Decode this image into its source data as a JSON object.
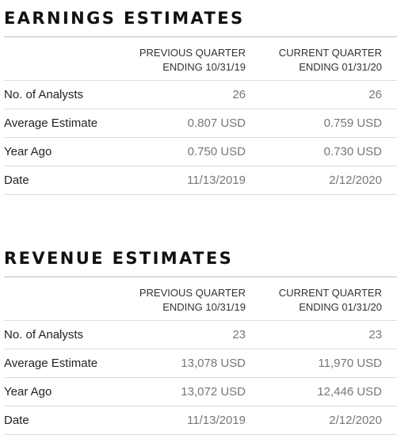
{
  "earnings": {
    "title": "EARNINGS ESTIMATES",
    "col1": {
      "line1": "PREVIOUS QUARTER",
      "line2": "ENDING 10/31/19"
    },
    "col2": {
      "line1": "CURRENT QUARTER",
      "line2": "ENDING 01/31/20"
    },
    "rows": [
      {
        "label": "No. of Analysts",
        "prev": "26",
        "curr": "26"
      },
      {
        "label": "Average Estimate",
        "prev": "0.807 USD",
        "curr": "0.759 USD"
      },
      {
        "label": "Year Ago",
        "prev": "0.750 USD",
        "curr": "0.730 USD"
      },
      {
        "label": "Date",
        "prev": "11/13/2019",
        "curr": "2/12/2020"
      }
    ]
  },
  "revenue": {
    "title": "REVENUE ESTIMATES",
    "col1": {
      "line1": "PREVIOUS QUARTER",
      "line2": "ENDING 10/31/19"
    },
    "col2": {
      "line1": "CURRENT QUARTER",
      "line2": "ENDING 01/31/20"
    },
    "rows": [
      {
        "label": "No. of Analysts",
        "prev": "23",
        "curr": "23"
      },
      {
        "label": "Average Estimate",
        "prev": "13,078 USD",
        "curr": "11,970 USD"
      },
      {
        "label": "Year Ago",
        "prev": "13,072 USD",
        "curr": "12,446 USD"
      },
      {
        "label": "Date",
        "prev": "11/13/2019",
        "curr": "2/12/2020"
      }
    ]
  }
}
